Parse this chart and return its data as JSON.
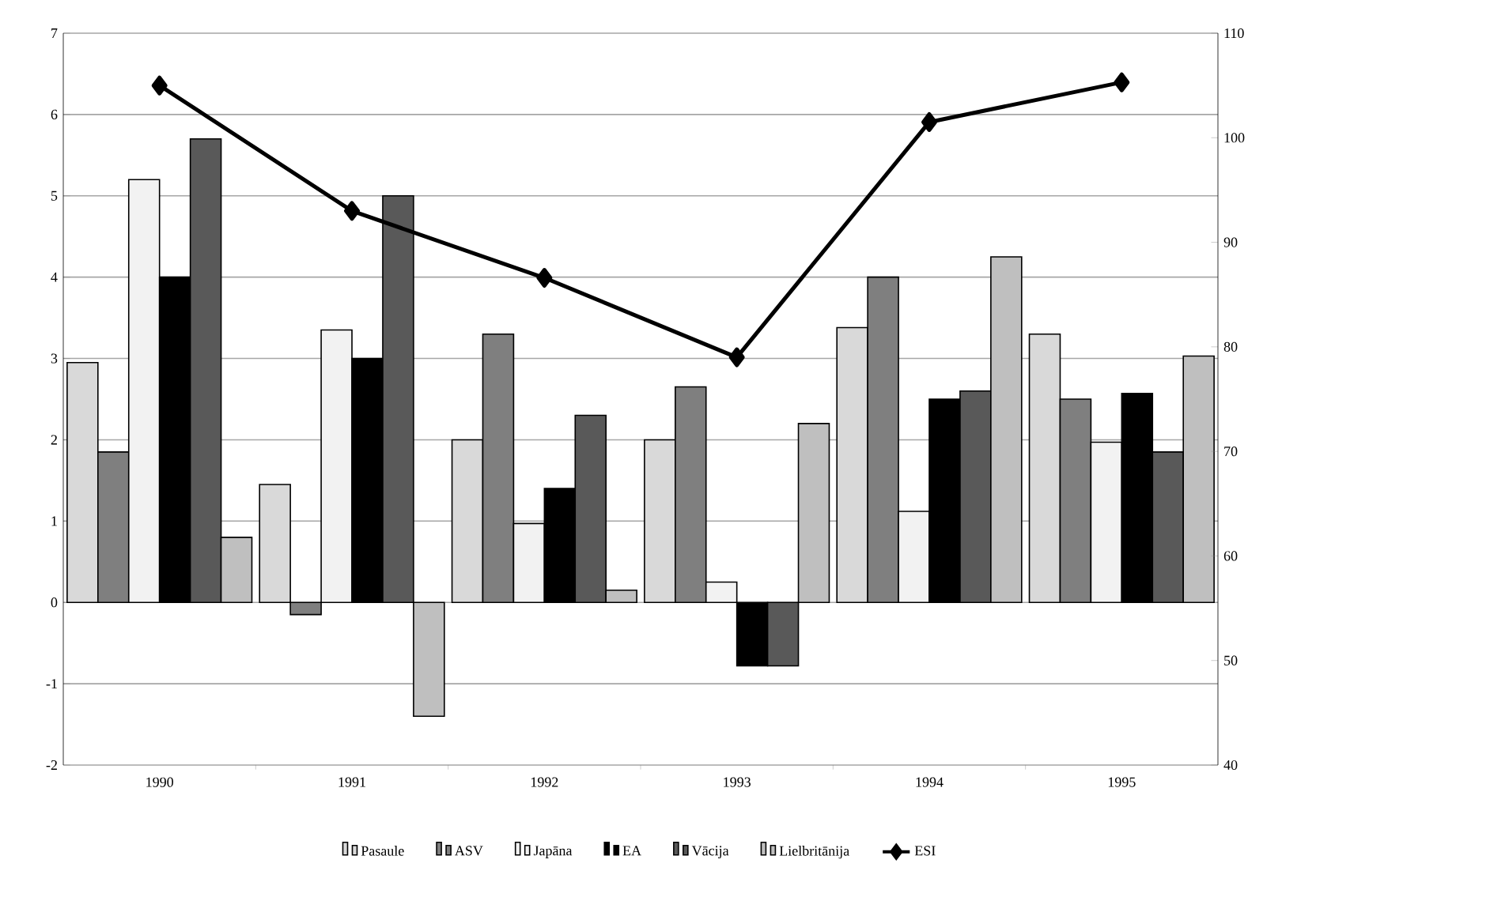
{
  "chart_data": {
    "type": "bar",
    "categories": [
      "1990",
      "1991",
      "1992",
      "1993",
      "1994",
      "1995"
    ],
    "series": [
      {
        "name": "Pasaule",
        "color": "#d9d9d9",
        "values": [
          2.95,
          1.45,
          2.0,
          2.0,
          3.38,
          3.3
        ]
      },
      {
        "name": "ASV",
        "color": "#7f7f7f",
        "values": [
          1.85,
          -0.15,
          3.3,
          2.65,
          4.0,
          2.5
        ]
      },
      {
        "name": "Japāna",
        "color": "#f2f2f2",
        "values": [
          5.2,
          3.35,
          0.97,
          0.25,
          1.12,
          1.97
        ]
      },
      {
        "name": "EA",
        "color": "#000000",
        "values": [
          4.0,
          3.0,
          1.4,
          -0.78,
          2.5,
          2.57
        ]
      },
      {
        "name": "Vācija",
        "color": "#595959",
        "values": [
          5.7,
          5.0,
          2.3,
          -0.78,
          2.6,
          1.85
        ]
      },
      {
        "name": "Lielbritānija",
        "color": "#bfbfbf",
        "values": [
          0.8,
          -1.4,
          0.15,
          2.2,
          4.25,
          3.03
        ]
      },
      {
        "name": "ESI",
        "type": "line",
        "axis": "y2",
        "color": "#000000",
        "marker": "diamond",
        "values": [
          105,
          93,
          86.6,
          79,
          101.5,
          105.3
        ]
      }
    ],
    "ylim": [
      -2,
      7
    ],
    "yticks": [
      -2,
      -1,
      0,
      1,
      2,
      3,
      4,
      5,
      6,
      7
    ],
    "y2lim": [
      40,
      110
    ],
    "y2ticks": [
      40,
      50,
      60,
      70,
      80,
      90,
      100,
      110
    ],
    "grid": "y",
    "legend": "bottom"
  }
}
